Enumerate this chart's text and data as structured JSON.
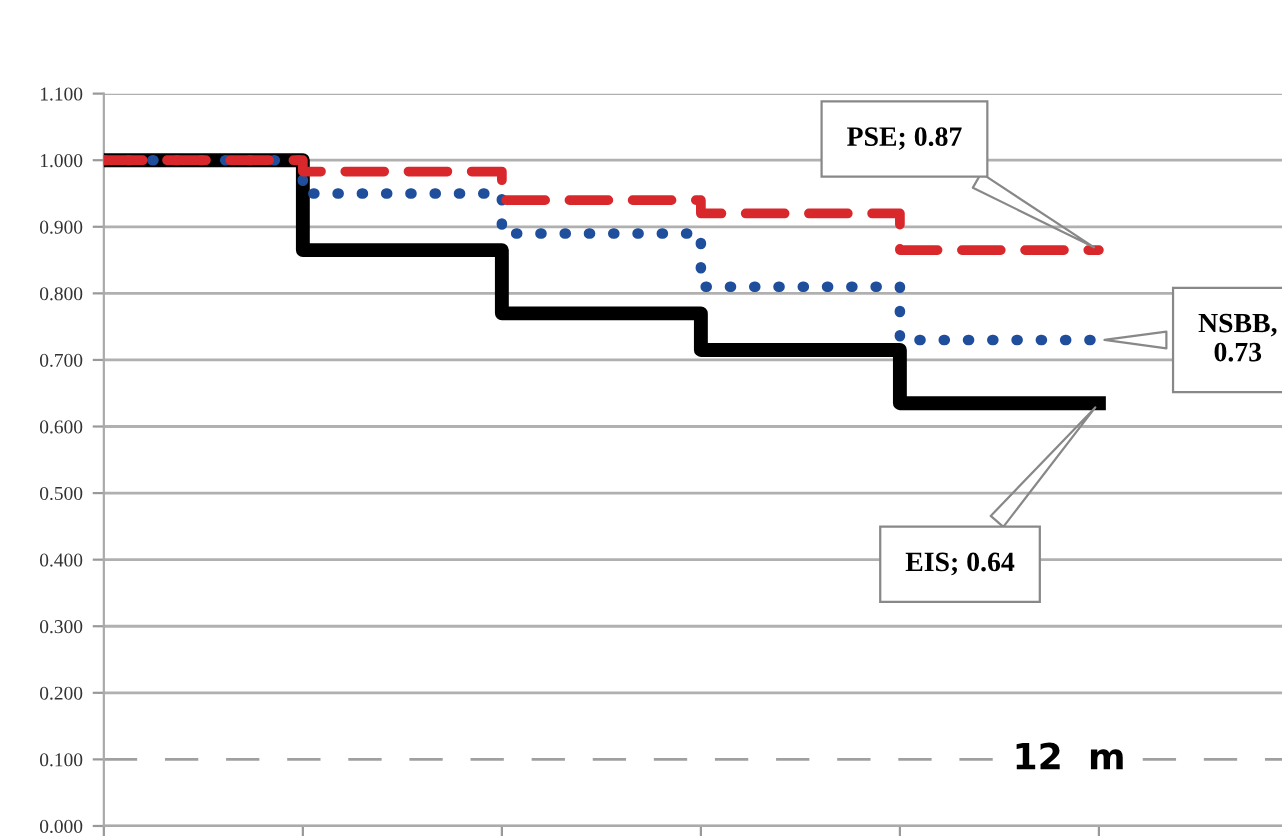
{
  "chart_data": {
    "type": "step",
    "categories": [
      null,
      null,
      null,
      null,
      null,
      null
    ],
    "series": [
      {
        "color": "#d8282b",
        "line_style": "dashed",
        "values": [
          1.0,
          0.983,
          0.94,
          0.92,
          0.865,
          0.865
        ]
      },
      {
        "color": "#1f4e9c",
        "line_style": "dotted",
        "values": [
          1.0,
          0.95,
          0.89,
          0.81,
          0.73,
          0.73
        ]
      },
      {
        "color": "#000000",
        "line_style": "solid",
        "values": [
          1.0,
          0.865,
          0.77,
          0.715,
          0.635,
          0.635
        ]
      }
    ],
    "ylim": [
      0,
      1.1
    ],
    "yticks": [
      {
        "value": 0,
        "label": "0.000"
      },
      {
        "value": 0.1,
        "label": "0.100"
      },
      {
        "value": 0.2,
        "label": "0.200"
      },
      {
        "value": 0.3,
        "label": "0.300"
      },
      {
        "value": 0.4,
        "label": "0.400"
      },
      {
        "value": 0.5,
        "label": "0.500"
      },
      {
        "value": 0.6,
        "label": "0.600"
      },
      {
        "value": 0.7,
        "label": "0.700"
      },
      {
        "value": 0.8,
        "label": "0.800"
      },
      {
        "value": 0.9,
        "label": "0.900"
      },
      {
        "value": 1.0,
        "label": "1.000"
      },
      {
        "value": 1.1,
        "label": "1.100"
      }
    ],
    "grid": "y",
    "tick_labels": "y",
    "ref_lines": [
      {
        "axis": "y",
        "value": 0.1,
        "label": "12  m",
        "color": "#a0a0a0",
        "line_style": "dashed"
      }
    ],
    "annotations": [
      "PSE; 0.87",
      "NSBB,\n0.73",
      "EIS; 0.64"
    ]
  }
}
